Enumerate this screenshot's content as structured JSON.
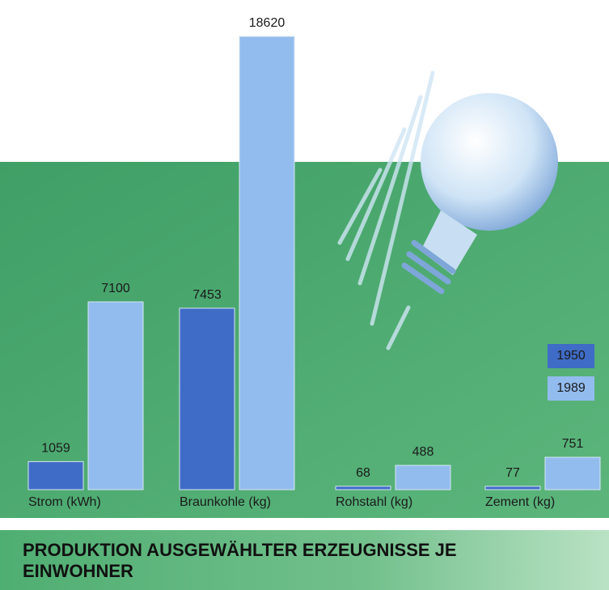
{
  "chart_data": {
    "type": "bar",
    "title": "PRODUKTION AUSGEWÄHLTER ERZEUGNISSE JE EINWOHNER",
    "categories": [
      "Strom (kWh)",
      "Braunkohle (kg)",
      "Rohstahl (kg)",
      "Zement (kg)"
    ],
    "series": [
      {
        "name": "1950",
        "color": "#3f6cc6",
        "values": [
          1059,
          7453,
          68,
          77
        ]
      },
      {
        "name": "1989",
        "color": "#92bcee",
        "values": [
          7100,
          18620,
          488,
          751
        ]
      }
    ]
  }
}
